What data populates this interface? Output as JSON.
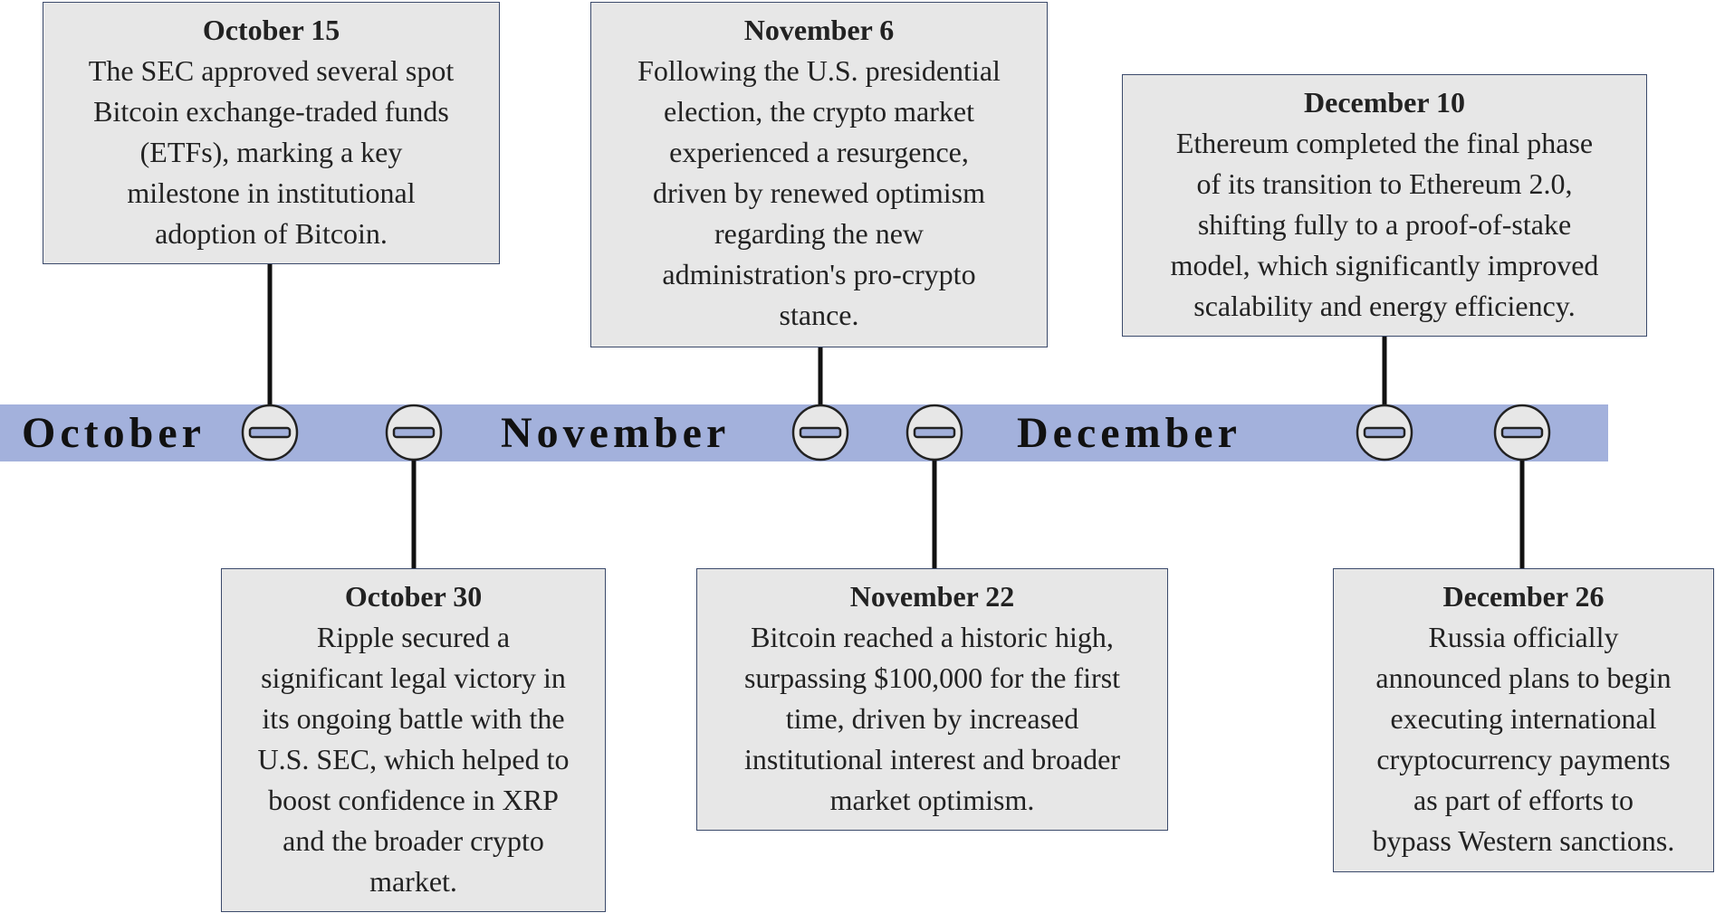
{
  "months": [
    "October",
    "November",
    "December"
  ],
  "events": [
    {
      "date": "October 15",
      "lines": [
        "The SEC approved several spot",
        "Bitcoin exchange-traded funds",
        "(ETFs), marking a key",
        "milestone in institutional",
        "adoption of  Bitcoin."
      ]
    },
    {
      "date": "October 30",
      "lines": [
        "Ripple secured a",
        "significant legal victory in",
        "its ongoing battle with the",
        "U.S. SEC, which helped to",
        "boost confidence in XRP",
        "and the broader crypto",
        "market."
      ]
    },
    {
      "date": "November 6",
      "lines": [
        "Following the U.S. presidential",
        "election, the crypto market",
        "experienced a resurgence,",
        "driven by renewed optimism",
        "regarding the new",
        "administration's pro-crypto",
        "stance."
      ]
    },
    {
      "date": "November 22",
      "lines": [
        "Bitcoin reached a historic high,",
        "surpassing $100,000 for the first",
        "time, driven by increased",
        "institutional interest and broader",
        "market optimism."
      ]
    },
    {
      "date": "December 10",
      "lines": [
        "Ethereum completed the final phase",
        "of  its transition to Ethereum 2.0,",
        "shifting fully to a proof-of-stake",
        "model, which significantly improved",
        "scalability and energy efficiency."
      ]
    },
    {
      "date": "December 26",
      "lines": [
        "Russia officially",
        "announced plans to begin",
        "executing international",
        "cryptocurrency payments",
        "as part of  efforts to",
        "bypass Western sanctions."
      ]
    }
  ]
}
